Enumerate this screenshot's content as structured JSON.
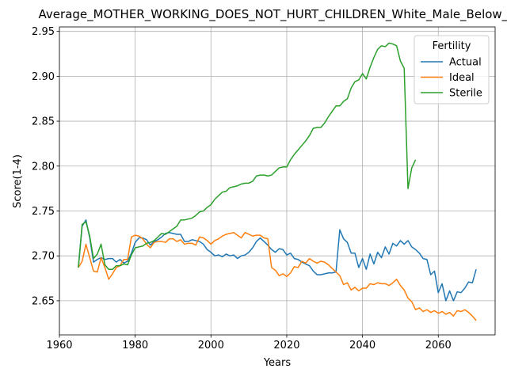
{
  "chart_data": {
    "type": "line",
    "title": "Average_MOTHER_WORKING_DOES_NOT_HURT_CHILDREN_White_Male_Below_A",
    "xlabel": "Years",
    "ylabel": "Score(1-4)",
    "xlim": [
      1960,
      2075
    ],
    "ylim": [
      2.612,
      2.955
    ],
    "xticks": [
      1960,
      1980,
      2000,
      2020,
      2040,
      2060
    ],
    "yticks": [
      2.65,
      2.7,
      2.75,
      2.8,
      2.85,
      2.9,
      2.95
    ],
    "ytick_labels": [
      "2.65",
      "2.70",
      "2.75",
      "2.80",
      "2.85",
      "2.90",
      "2.95"
    ],
    "grid": true,
    "legend": {
      "title": "Fertility",
      "placement": "top-right"
    },
    "series": [
      {
        "name": "Actual",
        "color": "#1f77b4",
        "points": [
          [
            1965,
            2.687
          ],
          [
            1966,
            2.733
          ],
          [
            1967,
            2.74
          ],
          [
            1968,
            2.72
          ],
          [
            1969,
            2.693
          ],
          [
            1970,
            2.696
          ],
          [
            1971,
            2.698
          ],
          [
            1972,
            2.696
          ],
          [
            1973,
            2.697
          ],
          [
            1974,
            2.697
          ],
          [
            1975,
            2.693
          ],
          [
            1976,
            2.696
          ],
          [
            1977,
            2.692
          ],
          [
            1978,
            2.694
          ],
          [
            1979,
            2.703
          ],
          [
            1980,
            2.715
          ],
          [
            1981,
            2.72
          ],
          [
            1982,
            2.72
          ],
          [
            1983,
            2.718
          ],
          [
            1984,
            2.712
          ],
          [
            1985,
            2.716
          ],
          [
            1986,
            2.718
          ],
          [
            1987,
            2.721
          ],
          [
            1988,
            2.725
          ],
          [
            1989,
            2.726
          ],
          [
            1990,
            2.725
          ],
          [
            1991,
            2.724
          ],
          [
            1992,
            2.724
          ],
          [
            1993,
            2.716
          ],
          [
            1994,
            2.716
          ],
          [
            1995,
            2.718
          ],
          [
            1996,
            2.717
          ],
          [
            1997,
            2.716
          ],
          [
            1998,
            2.713
          ],
          [
            1999,
            2.707
          ],
          [
            2000,
            2.704
          ],
          [
            2001,
            2.7
          ],
          [
            2002,
            2.701
          ],
          [
            2003,
            2.699
          ],
          [
            2004,
            2.702
          ],
          [
            2005,
            2.7
          ],
          [
            2006,
            2.701
          ],
          [
            2007,
            2.697
          ],
          [
            2008,
            2.7
          ],
          [
            2009,
            2.701
          ],
          [
            2010,
            2.704
          ],
          [
            2011,
            2.709
          ],
          [
            2012,
            2.716
          ],
          [
            2013,
            2.72
          ],
          [
            2014,
            2.716
          ],
          [
            2015,
            2.712
          ],
          [
            2016,
            2.707
          ],
          [
            2017,
            2.704
          ],
          [
            2018,
            2.708
          ],
          [
            2019,
            2.707
          ],
          [
            2020,
            2.701
          ],
          [
            2021,
            2.703
          ],
          [
            2022,
            2.697
          ],
          [
            2023,
            2.696
          ],
          [
            2024,
            2.693
          ],
          [
            2025,
            2.691
          ],
          [
            2026,
            2.689
          ],
          [
            2027,
            2.683
          ],
          [
            2028,
            2.679
          ],
          [
            2029,
            2.679
          ],
          [
            2030,
            2.68
          ],
          [
            2031,
            2.681
          ],
          [
            2032,
            2.681
          ],
          [
            2033,
            2.682
          ],
          [
            2034,
            2.729
          ],
          [
            2035,
            2.719
          ],
          [
            2036,
            2.715
          ],
          [
            2037,
            2.703
          ],
          [
            2038,
            2.703
          ],
          [
            2039,
            2.687
          ],
          [
            2040,
            2.697
          ],
          [
            2041,
            2.685
          ],
          [
            2042,
            2.702
          ],
          [
            2043,
            2.691
          ],
          [
            2044,
            2.704
          ],
          [
            2045,
            2.698
          ],
          [
            2046,
            2.71
          ],
          [
            2047,
            2.702
          ],
          [
            2048,
            2.714
          ],
          [
            2049,
            2.711
          ],
          [
            2050,
            2.717
          ],
          [
            2051,
            2.713
          ],
          [
            2052,
            2.717
          ],
          [
            2053,
            2.71
          ],
          [
            2054,
            2.707
          ],
          [
            2055,
            2.703
          ],
          [
            2056,
            2.697
          ],
          [
            2057,
            2.696
          ],
          [
            2058,
            2.679
          ],
          [
            2059,
            2.683
          ],
          [
            2060,
            2.659
          ],
          [
            2061,
            2.669
          ],
          [
            2062,
            2.65
          ],
          [
            2063,
            2.661
          ],
          [
            2064,
            2.65
          ],
          [
            2065,
            2.66
          ],
          [
            2066,
            2.659
          ],
          [
            2067,
            2.664
          ],
          [
            2068,
            2.671
          ],
          [
            2069,
            2.67
          ],
          [
            2070,
            2.685
          ]
        ]
      },
      {
        "name": "Ideal",
        "color": "#ff7f0e",
        "points": [
          [
            1965,
            2.687
          ],
          [
            1966,
            2.694
          ],
          [
            1967,
            2.713
          ],
          [
            1968,
            2.698
          ],
          [
            1969,
            2.683
          ],
          [
            1970,
            2.682
          ],
          [
            1971,
            2.698
          ],
          [
            1972,
            2.687
          ],
          [
            1973,
            2.674
          ],
          [
            1974,
            2.68
          ],
          [
            1975,
            2.687
          ],
          [
            1976,
            2.689
          ],
          [
            1977,
            2.696
          ],
          [
            1978,
            2.696
          ],
          [
            1979,
            2.721
          ],
          [
            1980,
            2.723
          ],
          [
            1981,
            2.722
          ],
          [
            1982,
            2.719
          ],
          [
            1983,
            2.713
          ],
          [
            1984,
            2.709
          ],
          [
            1985,
            2.715
          ],
          [
            1986,
            2.716
          ],
          [
            1987,
            2.716
          ],
          [
            1988,
            2.715
          ],
          [
            1989,
            2.719
          ],
          [
            1990,
            2.719
          ],
          [
            1991,
            2.716
          ],
          [
            1992,
            2.718
          ],
          [
            1993,
            2.713
          ],
          [
            1994,
            2.714
          ],
          [
            1995,
            2.714
          ],
          [
            1996,
            2.712
          ],
          [
            1997,
            2.721
          ],
          [
            1998,
            2.72
          ],
          [
            1999,
            2.717
          ],
          [
            2000,
            2.713
          ],
          [
            2001,
            2.717
          ],
          [
            2002,
            2.719
          ],
          [
            2003,
            2.722
          ],
          [
            2004,
            2.724
          ],
          [
            2005,
            2.725
          ],
          [
            2006,
            2.726
          ],
          [
            2007,
            2.723
          ],
          [
            2008,
            2.72
          ],
          [
            2009,
            2.726
          ],
          [
            2010,
            2.724
          ],
          [
            2011,
            2.722
          ],
          [
            2012,
            2.723
          ],
          [
            2013,
            2.723
          ],
          [
            2014,
            2.72
          ],
          [
            2015,
            2.719
          ],
          [
            2016,
            2.687
          ],
          [
            2017,
            2.684
          ],
          [
            2018,
            2.678
          ],
          [
            2019,
            2.68
          ],
          [
            2020,
            2.677
          ],
          [
            2021,
            2.681
          ],
          [
            2022,
            2.688
          ],
          [
            2023,
            2.687
          ],
          [
            2024,
            2.694
          ],
          [
            2025,
            2.692
          ],
          [
            2026,
            2.697
          ],
          [
            2027,
            2.694
          ],
          [
            2028,
            2.692
          ],
          [
            2029,
            2.694
          ],
          [
            2030,
            2.693
          ],
          [
            2031,
            2.69
          ],
          [
            2032,
            2.686
          ],
          [
            2033,
            2.682
          ],
          [
            2034,
            2.678
          ],
          [
            2035,
            2.668
          ],
          [
            2036,
            2.67
          ],
          [
            2037,
            2.662
          ],
          [
            2038,
            2.665
          ],
          [
            2039,
            2.661
          ],
          [
            2040,
            2.664
          ],
          [
            2041,
            2.664
          ],
          [
            2042,
            2.669
          ],
          [
            2043,
            2.668
          ],
          [
            2044,
            2.67
          ],
          [
            2045,
            2.669
          ],
          [
            2046,
            2.669
          ],
          [
            2047,
            2.667
          ],
          [
            2048,
            2.67
          ],
          [
            2049,
            2.674
          ],
          [
            2050,
            2.667
          ],
          [
            2051,
            2.662
          ],
          [
            2052,
            2.653
          ],
          [
            2053,
            2.649
          ],
          [
            2054,
            2.64
          ],
          [
            2055,
            2.642
          ],
          [
            2056,
            2.638
          ],
          [
            2057,
            2.64
          ],
          [
            2058,
            2.637
          ],
          [
            2059,
            2.639
          ],
          [
            2060,
            2.636
          ],
          [
            2061,
            2.638
          ],
          [
            2062,
            2.635
          ],
          [
            2063,
            2.637
          ],
          [
            2064,
            2.633
          ],
          [
            2065,
            2.639
          ],
          [
            2066,
            2.638
          ],
          [
            2067,
            2.64
          ],
          [
            2068,
            2.637
          ],
          [
            2069,
            2.633
          ],
          [
            2070,
            2.628
          ]
        ]
      },
      {
        "name": "Sterile",
        "color": "#2ca02c",
        "points": [
          [
            1965,
            2.687
          ],
          [
            1966,
            2.735
          ],
          [
            1967,
            2.738
          ],
          [
            1968,
            2.722
          ],
          [
            1969,
            2.697
          ],
          [
            1970,
            2.702
          ],
          [
            1971,
            2.713
          ],
          [
            1972,
            2.69
          ],
          [
            1973,
            2.685
          ],
          [
            1974,
            2.685
          ],
          [
            1975,
            2.689
          ],
          [
            1976,
            2.689
          ],
          [
            1977,
            2.691
          ],
          [
            1978,
            2.69
          ],
          [
            1979,
            2.701
          ],
          [
            1980,
            2.709
          ],
          [
            1981,
            2.71
          ],
          [
            1982,
            2.711
          ],
          [
            1983,
            2.714
          ],
          [
            1984,
            2.715
          ],
          [
            1985,
            2.717
          ],
          [
            1986,
            2.721
          ],
          [
            1987,
            2.725
          ],
          [
            1988,
            2.724
          ],
          [
            1989,
            2.727
          ],
          [
            1990,
            2.73
          ],
          [
            1991,
            2.733
          ],
          [
            1992,
            2.74
          ],
          [
            1993,
            2.74
          ],
          [
            1994,
            2.741
          ],
          [
            1995,
            2.742
          ],
          [
            1996,
            2.745
          ],
          [
            1997,
            2.749
          ],
          [
            1998,
            2.75
          ],
          [
            1999,
            2.754
          ],
          [
            2000,
            2.757
          ],
          [
            2001,
            2.763
          ],
          [
            2002,
            2.767
          ],
          [
            2003,
            2.771
          ],
          [
            2004,
            2.772
          ],
          [
            2005,
            2.776
          ],
          [
            2006,
            2.777
          ],
          [
            2007,
            2.778
          ],
          [
            2008,
            2.78
          ],
          [
            2009,
            2.781
          ],
          [
            2010,
            2.781
          ],
          [
            2011,
            2.783
          ],
          [
            2012,
            2.789
          ],
          [
            2013,
            2.79
          ],
          [
            2014,
            2.79
          ],
          [
            2015,
            2.789
          ],
          [
            2016,
            2.79
          ],
          [
            2017,
            2.794
          ],
          [
            2018,
            2.798
          ],
          [
            2019,
            2.799
          ],
          [
            2020,
            2.799
          ],
          [
            2021,
            2.807
          ],
          [
            2022,
            2.813
          ],
          [
            2023,
            2.818
          ],
          [
            2024,
            2.823
          ],
          [
            2025,
            2.828
          ],
          [
            2026,
            2.834
          ],
          [
            2027,
            2.842
          ],
          [
            2028,
            2.843
          ],
          [
            2029,
            2.843
          ],
          [
            2030,
            2.848
          ],
          [
            2031,
            2.855
          ],
          [
            2032,
            2.861
          ],
          [
            2033,
            2.867
          ],
          [
            2034,
            2.867
          ],
          [
            2035,
            2.872
          ],
          [
            2036,
            2.875
          ],
          [
            2037,
            2.887
          ],
          [
            2038,
            2.894
          ],
          [
            2039,
            2.896
          ],
          [
            2040,
            2.903
          ],
          [
            2041,
            2.897
          ],
          [
            2042,
            2.91
          ],
          [
            2043,
            2.921
          ],
          [
            2044,
            2.93
          ],
          [
            2045,
            2.934
          ],
          [
            2046,
            2.933
          ],
          [
            2047,
            2.937
          ],
          [
            2048,
            2.936
          ],
          [
            2049,
            2.934
          ],
          [
            2050,
            2.917
          ],
          [
            2051,
            2.909
          ],
          [
            2052,
            2.775
          ],
          [
            2053,
            2.798
          ],
          [
            2054,
            2.807
          ]
        ]
      }
    ]
  }
}
